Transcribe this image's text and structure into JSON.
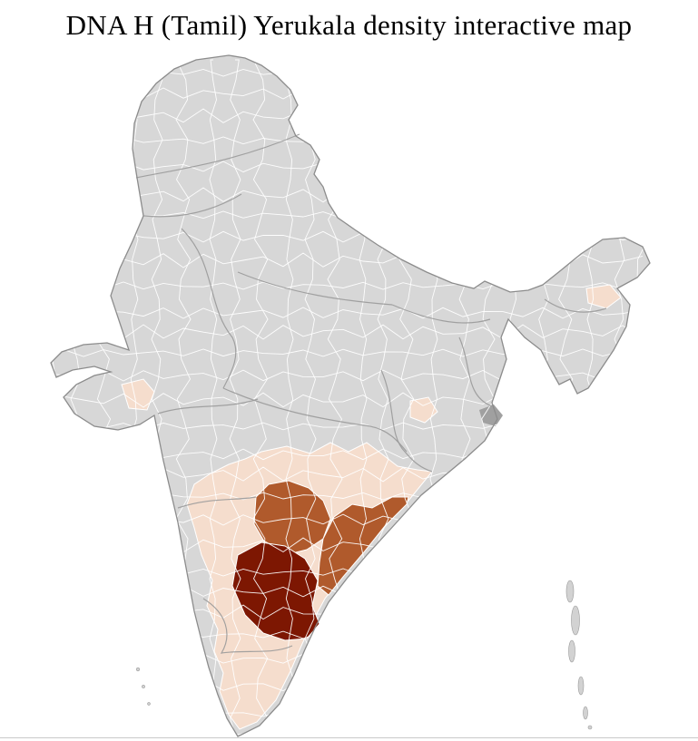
{
  "title": "DNA H (Tamil) Yerukala density interactive map",
  "map": {
    "region": "India",
    "granularity": "districts",
    "district_fill": "#d7d7d7",
    "district_border_color": "#ffffff",
    "state_border_color": "#9a9a9a",
    "outline_color": "#8c8c8c",
    "island_fill": "#d2d2d2",
    "metro_cluster_fill": "#a0a0a0",
    "density_colors": {
      "high": "#7d1702",
      "medium": "#b05a2c",
      "low": "#f5ddcd",
      "none": "#d7d7d7"
    },
    "density_levels": [
      {
        "level": "high",
        "color": "#7d1702"
      },
      {
        "level": "medium",
        "color": "#b05a2c"
      },
      {
        "level": "low",
        "color": "#f5ddcd"
      },
      {
        "level": "none",
        "color": "#d7d7d7"
      }
    ]
  },
  "divider_color": "#c9c9c9"
}
